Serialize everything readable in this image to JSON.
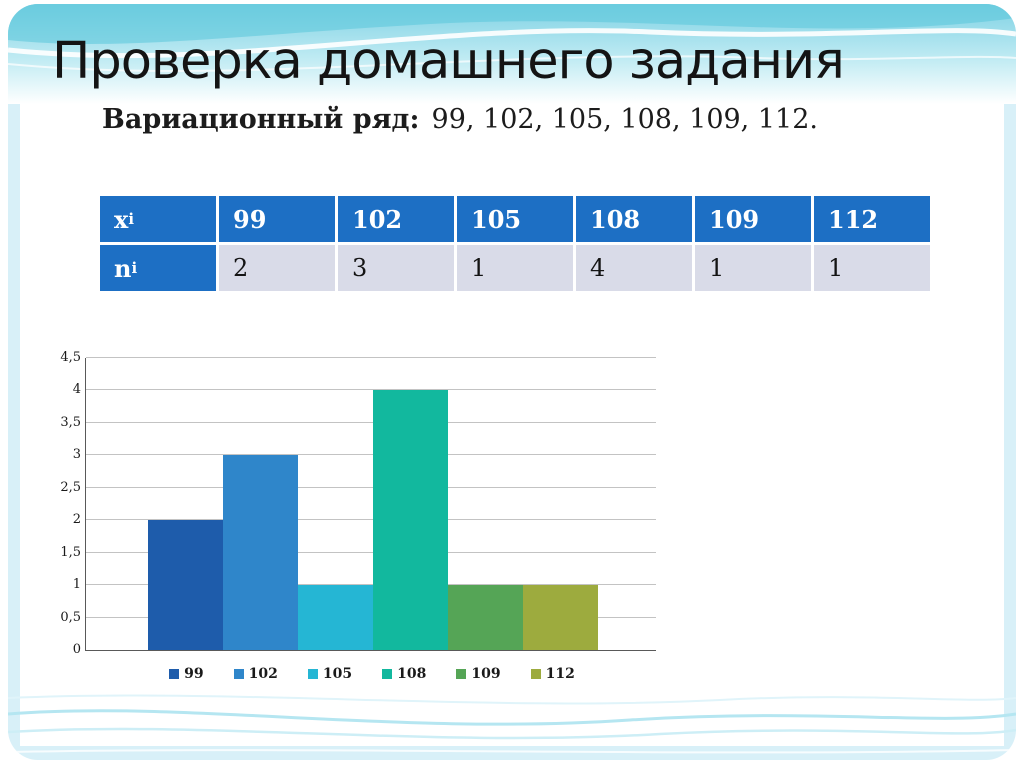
{
  "slide": {
    "title": "Проверка домашнего задания",
    "series_label": "Вариационный ряд:",
    "series_values": "99, 102, 105,  108, 109, 112."
  },
  "table": {
    "header_bg": "#1d6fc4",
    "body_bg": "#d9dbe8",
    "rows": [
      {
        "label_base": "x",
        "label_sub": "i",
        "is_header": true,
        "values": [
          "99",
          "102",
          "105",
          "108",
          "109",
          "112"
        ]
      },
      {
        "label_base": "n",
        "label_sub": "i",
        "is_header": false,
        "values": [
          "2",
          "3",
          "1",
          "4",
          "1",
          "1"
        ]
      }
    ]
  },
  "chart_data": {
    "type": "bar",
    "title": "",
    "categories": [
      "99",
      "102",
      "105",
      "108",
      "109",
      "112"
    ],
    "values": [
      2,
      3,
      1,
      4,
      1,
      1
    ],
    "colors": [
      "#1e5cab",
      "#2f86ca",
      "#25b6d4",
      "#12b89e",
      "#55a556",
      "#9dab3e"
    ],
    "ylim": [
      0,
      4.5
    ],
    "ytick_step": 0.5,
    "ytick_labels": [
      "0",
      "0,5",
      "1",
      "1,5",
      "2",
      "2,5",
      "3",
      "3,5",
      "4",
      "4,5"
    ],
    "grid": true,
    "legend_position": "bottom"
  },
  "theme": {
    "accent_blue": "#1d6fc4",
    "row_lavender": "#d9dbe8",
    "wave_cyan": "#7fd2e4"
  }
}
